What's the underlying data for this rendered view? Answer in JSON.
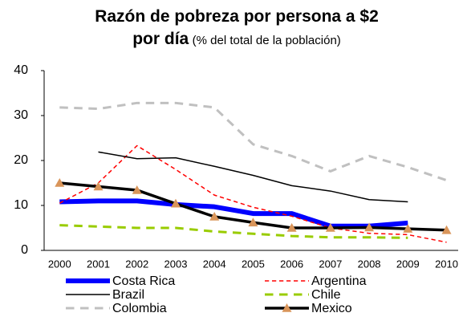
{
  "chart_data": {
    "type": "line",
    "title": "Razón de pobreza por persona a $2 por día",
    "subtitle": "(% del total de la población)",
    "x": [
      2000,
      2001,
      2002,
      2003,
      2004,
      2005,
      2006,
      2007,
      2008,
      2009,
      2010
    ],
    "xlim": [
      1999.6,
      2010.3
    ],
    "xticks": [
      2000,
      2001,
      2002,
      2003,
      2004,
      2005,
      2006,
      2007,
      2008,
      2009,
      2010
    ],
    "ylim": [
      0,
      40
    ],
    "yticks": [
      0,
      10,
      20,
      30,
      40
    ],
    "grid": false,
    "legend": "bottom",
    "series": [
      {
        "name": "Costa Rica",
        "color": "#0000ff",
        "linestyle": "solid",
        "linewidth": 6,
        "values": [
          10.8,
          11,
          11,
          10.2,
          9.7,
          8.2,
          8.2,
          5.4,
          5.4,
          6.1,
          null
        ]
      },
      {
        "name": "Argentina",
        "color": "#ff0000",
        "linestyle": "dashed",
        "linewidth": 1.5,
        "values": [
          10.5,
          15,
          23.3,
          18,
          12.3,
          9.6,
          7.6,
          5.0,
          3.8,
          3.5,
          1.8
        ]
      },
      {
        "name": "Brazil",
        "color": "#000000",
        "linestyle": "solid",
        "linewidth": 1.5,
        "values": [
          null,
          21.9,
          20.4,
          20.6,
          18.7,
          16.7,
          14.4,
          13.2,
          11.3,
          10.8,
          null
        ]
      },
      {
        "name": "Chile",
        "color": "#99cc00",
        "linestyle": "dashed",
        "linewidth": 3,
        "values": [
          5.6,
          5.3,
          5.0,
          5.0,
          4.2,
          3.7,
          3.2,
          2.9,
          2.9,
          2.8,
          null
        ]
      },
      {
        "name": "Colombia",
        "color": "#c0c0c0",
        "linestyle": "dashed",
        "linewidth": 3,
        "values": [
          31.8,
          31.5,
          32.8,
          32.8,
          31.8,
          23.6,
          21,
          17.6,
          21,
          18.5,
          15.6
        ]
      },
      {
        "name": "Mexico",
        "color": "#000000",
        "linestyle": "solid",
        "linewidth": 3.5,
        "marker": "triangle",
        "marker_color": "#d9955a",
        "values": [
          15,
          14.2,
          13.4,
          10.4,
          7.5,
          6.2,
          5.0,
          5.0,
          5.1,
          4.8,
          4.5
        ]
      }
    ]
  }
}
